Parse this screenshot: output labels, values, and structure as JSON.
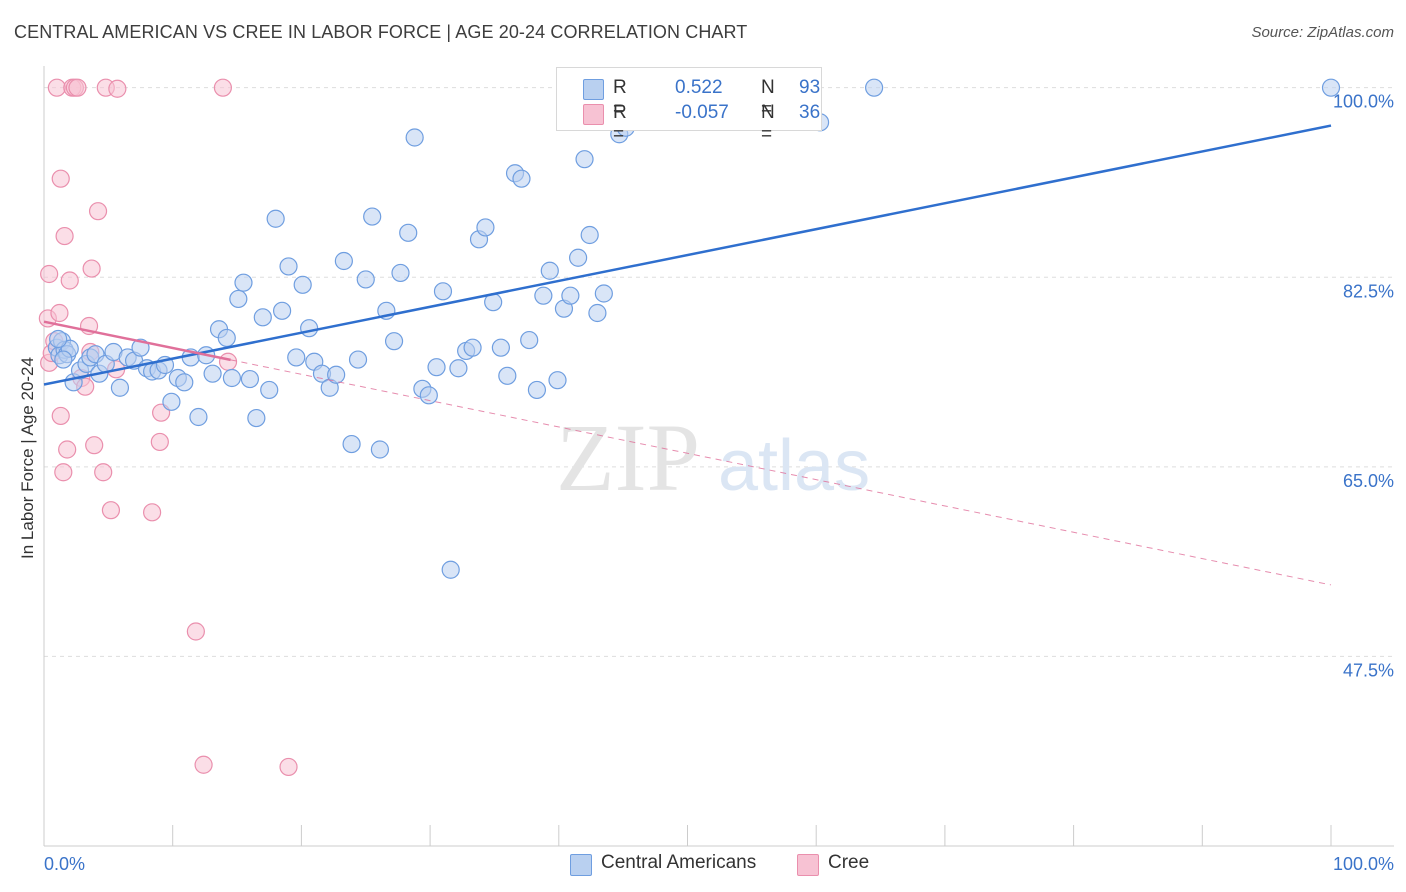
{
  "header": {
    "title": "CENTRAL AMERICAN VS CREE IN LABOR FORCE | AGE 20-24 CORRELATION CHART",
    "source": "Source: ZipAtlas.com"
  },
  "watermark": {
    "zip": "ZIP",
    "atlas": "atlas"
  },
  "legend_stats": [
    {
      "r_label": "R =",
      "r_value": "0.522",
      "n_label": "N =",
      "n_value": "93"
    },
    {
      "r_label": "R =",
      "r_value": "-0.057",
      "n_label": "N =",
      "n_value": "36"
    }
  ],
  "colors": {
    "blue_fill": "#b9d0f0",
    "blue_stroke": "#6f9ee0",
    "blue_line": "#2f6fce",
    "pink_fill": "#f7c2d3",
    "pink_stroke": "#ea8fad",
    "pink_line": "#e0709a",
    "tick_label": "#3a73c9",
    "grid": "#dddddd"
  },
  "chart_data": {
    "type": "scatter",
    "title": "CENTRAL AMERICAN VS CREE IN LABOR FORCE | AGE 20-24 CORRELATION CHART",
    "xlabel": "",
    "ylabel": "In Labor Force | Age 20-24",
    "xlim": [
      0,
      100
    ],
    "ylim": [
      30,
      102
    ],
    "x_tick_labels": [
      "0.0%",
      "100.0%"
    ],
    "y_ticks": [
      47.5,
      65.0,
      82.5,
      100.0
    ],
    "y_tick_labels": [
      "47.5%",
      "65.0%",
      "82.5%",
      "100.0%"
    ],
    "grid": true,
    "legend_position": "bottom",
    "series": [
      {
        "name": "Central Americans",
        "trendline": {
          "x": [
            0,
            100
          ],
          "y": [
            72.6,
            96.5
          ],
          "style": "solid"
        },
        "x": [
          1.0,
          1.2,
          1.4,
          1.6,
          1.8,
          2.0,
          1.1,
          1.5,
          2.3,
          2.8,
          3.3,
          3.6,
          4.0,
          4.3,
          4.8,
          5.4,
          5.9,
          6.5,
          7.0,
          7.5,
          8.0,
          8.4,
          8.9,
          9.4,
          9.9,
          10.4,
          10.9,
          11.4,
          12.0,
          12.6,
          13.1,
          13.6,
          14.2,
          14.6,
          15.1,
          15.5,
          16.0,
          16.5,
          17.0,
          17.5,
          18.0,
          18.5,
          19.0,
          19.6,
          20.1,
          20.6,
          21.0,
          21.6,
          22.2,
          22.7,
          23.3,
          23.9,
          24.4,
          25.0,
          25.5,
          26.1,
          26.6,
          27.2,
          27.7,
          28.3,
          28.8,
          29.4,
          29.9,
          30.5,
          31.0,
          31.6,
          32.2,
          32.8,
          33.3,
          33.8,
          34.3,
          34.9,
          35.5,
          36.0,
          36.6,
          37.1,
          37.7,
          38.3,
          38.8,
          39.3,
          39.9,
          40.4,
          40.9,
          41.5,
          42.0,
          42.4,
          43.0,
          43.5,
          44.7,
          45.2,
          60.3,
          64.5,
          100.0
        ],
        "y": [
          76.0,
          75.3,
          76.6,
          75.8,
          75.4,
          75.9,
          76.8,
          74.9,
          72.8,
          73.9,
          74.5,
          75.1,
          75.4,
          73.6,
          74.5,
          75.6,
          72.3,
          75.1,
          74.8,
          76.0,
          74.1,
          73.8,
          73.9,
          74.4,
          71.0,
          73.2,
          72.8,
          75.1,
          69.6,
          75.3,
          73.6,
          77.7,
          76.9,
          73.2,
          80.5,
          82.0,
          73.1,
          69.5,
          78.8,
          72.1,
          87.9,
          79.4,
          83.5,
          75.1,
          81.8,
          77.8,
          74.7,
          73.6,
          72.3,
          73.5,
          84.0,
          67.1,
          74.9,
          82.3,
          88.1,
          66.6,
          79.4,
          76.6,
          82.9,
          86.6,
          95.4,
          72.2,
          71.6,
          74.2,
          81.2,
          55.5,
          74.1,
          75.7,
          76.0,
          86.0,
          87.1,
          80.2,
          76.0,
          73.4,
          92.1,
          91.6,
          76.7,
          72.1,
          80.8,
          83.1,
          73.0,
          79.6,
          80.8,
          84.3,
          93.4,
          86.4,
          79.2,
          81.0,
          95.7,
          96.3,
          96.8,
          100.0,
          100.0
        ]
      },
      {
        "name": "Cree",
        "trendline": {
          "x": [
            0,
            100
          ],
          "y": [
            78.4,
            54.1
          ],
          "style": "solid-then-dashed",
          "solid_until_x": 14.5
        },
        "x": [
          0.3,
          0.4,
          0.4,
          0.6,
          0.8,
          1.0,
          1.2,
          1.3,
          1.3,
          1.5,
          1.6,
          1.8,
          2.0,
          2.2,
          2.4,
          2.6,
          2.9,
          3.2,
          3.5,
          3.6,
          3.7,
          3.9,
          4.2,
          4.6,
          4.8,
          5.2,
          5.6,
          5.7,
          8.4,
          9.0,
          9.1,
          11.8,
          12.4,
          13.9,
          14.3,
          19.0
        ],
        "y": [
          78.7,
          74.6,
          82.8,
          75.5,
          76.6,
          100.0,
          79.2,
          91.6,
          69.7,
          64.5,
          86.3,
          66.6,
          82.2,
          100.0,
          100.0,
          100.0,
          73.2,
          72.4,
          78.0,
          75.6,
          83.3,
          67.0,
          88.6,
          64.5,
          100.0,
          61.0,
          74.0,
          99.9,
          60.8,
          67.3,
          70.0,
          49.8,
          37.5,
          100.0,
          74.7,
          37.3
        ]
      }
    ]
  }
}
